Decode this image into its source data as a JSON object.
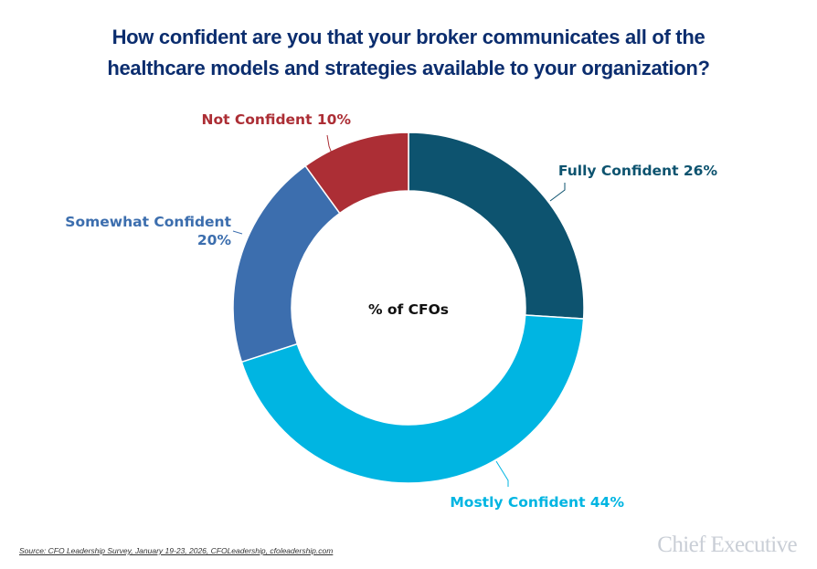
{
  "chart_data": {
    "type": "pie",
    "style": "donut",
    "title": "How confident are you that your broker communicates all of the healthcare models and strategies available to your organization?",
    "center_label": "% of CFOs",
    "slices": [
      {
        "name": "Fully Confident",
        "value": 26,
        "label": "Fully Confident 26%",
        "color": "#0d536f"
      },
      {
        "name": "Mostly Confident",
        "value": 44,
        "label": "Mostly Confident 44%",
        "color": "#00b5e2"
      },
      {
        "name": "Somewhat Confident",
        "value": 20,
        "label_line1": "Somewhat Confident",
        "label_line2": "20%",
        "color": "#3c6eae"
      },
      {
        "name": "Not Confident",
        "value": 10,
        "label": "Not Confident 10%",
        "color": "#ac2e35"
      }
    ]
  },
  "title_line1": "How confident are you that your broker communicates all of the",
  "title_line2": "healthcare models and strategies available to your organization?",
  "source": "Source: CFO Leadership Survey, January 19-23, 2026, CFOLeadership, cfoleadership.com",
  "logo": "Chief Executive"
}
